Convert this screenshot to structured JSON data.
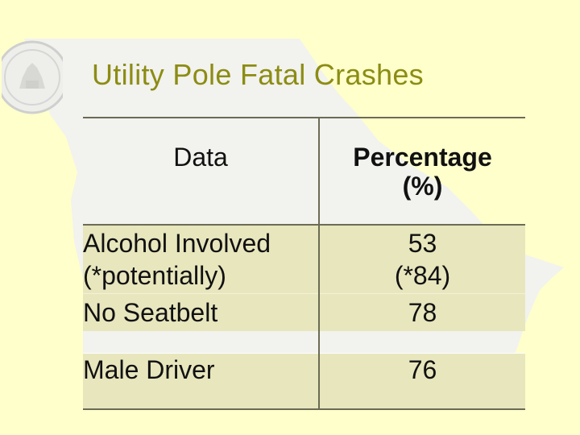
{
  "slide": {
    "title": "Utility Pole Fatal Crashes",
    "background_color": "#ffffcc",
    "title_color": "#8c8c14",
    "map_watermark_color": "#f2f2ee",
    "seal_color": "#cccccc",
    "seal_icon": "state-seal-icon"
  },
  "table": {
    "header": {
      "data_label": "Data",
      "percentage_label_line1": "Percentage",
      "percentage_label_line2": "(%)"
    },
    "rows": [
      {
        "label_line1": "Alcohol Involved",
        "label_line2": "(*potentially)",
        "value_line1": "53",
        "value_line2": "(*84)"
      },
      {
        "label": "No Seatbelt",
        "value": "78"
      },
      {
        "label": "Male Driver",
        "value": "76"
      }
    ]
  }
}
